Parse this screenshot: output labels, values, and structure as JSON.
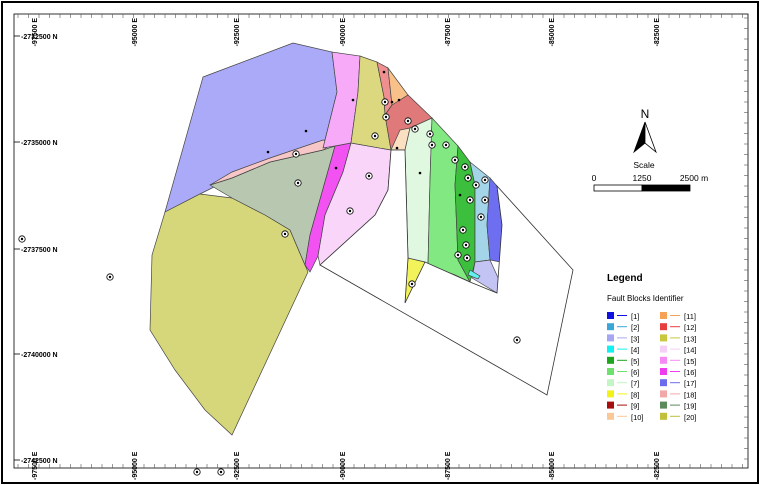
{
  "map": {
    "x_tick_labels": [
      "-97500 E",
      "-95000 E",
      "-92500 E",
      "-90000 E",
      "-87500 E",
      "-85000 E",
      "-82500 E"
    ],
    "y_tick_labels": [
      "-2732500 N",
      "-2735000 N",
      "-2737500 N",
      "-2740000 N",
      "-2742500 N"
    ]
  },
  "north_arrow": {
    "label": "N"
  },
  "scale_bar": {
    "title": "Scale",
    "labels": [
      "0",
      "1250",
      "2500 m"
    ]
  },
  "legend": {
    "title": "Legend",
    "subtitle": "Fault Blocks Identifier",
    "items": [
      {
        "label": "[1]",
        "color": "#1010e0"
      },
      {
        "label": "[2]",
        "color": "#3aa6d8"
      },
      {
        "label": "[3]",
        "color": "#a6a6f5"
      },
      {
        "label": "[4]",
        "color": "#10f2f2"
      },
      {
        "label": "[5]",
        "color": "#1ea51e"
      },
      {
        "label": "[6]",
        "color": "#6ee06e"
      },
      {
        "label": "[7]",
        "color": "#c4f5c4"
      },
      {
        "label": "[8]",
        "color": "#f2f218"
      },
      {
        "label": "[9]",
        "color": "#a60d0d"
      },
      {
        "label": "[10]",
        "color": "#f9c896"
      },
      {
        "label": "[11]",
        "color": "#f5a256"
      },
      {
        "label": "[12]",
        "color": "#e83d3d"
      },
      {
        "label": "[13]",
        "color": "#c8c83c"
      },
      {
        "label": "[14]",
        "color": "#f5cff5"
      },
      {
        "label": "[15]",
        "color": "#f58af5"
      },
      {
        "label": "[16]",
        "color": "#ee3cee"
      },
      {
        "label": "[17]",
        "color": "#6b6bee"
      },
      {
        "label": "[18]",
        "color": "#f2a8a8"
      },
      {
        "label": "[19]",
        "color": "#5b8a5b"
      },
      {
        "label": "[20]",
        "color": "#c0c03a"
      }
    ]
  },
  "fault_blocks": [
    {
      "id": "[3]",
      "color": "#aaaaf8"
    },
    {
      "id": "[20]",
      "color": "#d6d67a"
    },
    {
      "id": "[19]",
      "color": "#b8c8b0"
    },
    {
      "id": "[18]",
      "color": "#f7c6c6"
    },
    {
      "id": "[16]",
      "color": "#f252f2"
    },
    {
      "id": "[15]",
      "color": "#f7aaf7"
    },
    {
      "id": "[14]",
      "color": "#f9d6f9"
    },
    {
      "id": "[13]",
      "color": "#dcd880"
    },
    {
      "id": "[12]",
      "color": "#ef8f8f"
    },
    {
      "id": "[11]",
      "color": "#f9c18a"
    },
    {
      "id": "[9]",
      "color": "#e07a7a"
    },
    {
      "id": "[10]",
      "color": "#fae0c0"
    },
    {
      "id": "[8]",
      "color": "#f2f25a"
    },
    {
      "id": "[7]",
      "color": "#dff8df"
    },
    {
      "id": "[6]",
      "color": "#82e882"
    },
    {
      "id": "[5]",
      "color": "#3cbf3c"
    },
    {
      "id": "[2]",
      "color": "#a4d4e8"
    },
    {
      "id": "[17]",
      "color": "#c4c4f4"
    },
    {
      "id": "[1]",
      "color": "#6e6ef0"
    },
    {
      "id": "[4]",
      "color": "#60f0f0"
    }
  ]
}
